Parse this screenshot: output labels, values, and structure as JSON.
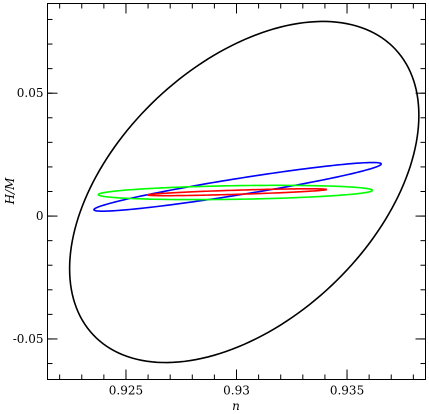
{
  "chart_data": {
    "type": "contour",
    "title": "",
    "xlabel": "n",
    "ylabel": "H/M",
    "xlim": [
      0.92145,
      0.93855
    ],
    "ylim": [
      -0.0665,
      0.0865
    ],
    "xticks": [
      {
        "value": 0.925,
        "label": "0.925"
      },
      {
        "value": 0.93,
        "label": "0.93"
      },
      {
        "value": 0.935,
        "label": "0.935"
      }
    ],
    "yticks": [
      {
        "value": -0.05,
        "label": "-0.05"
      },
      {
        "value": 0,
        "label": "0"
      },
      {
        "value": 0.05,
        "label": "0.05"
      }
    ],
    "x_minor_step": 0.001,
    "y_minor_step": 0.01,
    "grid": false,
    "legend": "none",
    "series": [
      {
        "color": "#000000",
        "center": [
          0.93035,
          0.0098
        ],
        "extent_x": [
          0.92245,
          0.93825
        ],
        "extent_y": [
          -0.0595,
          0.0793
        ],
        "tilt": 0.45
      },
      {
        "color": "#0000ff",
        "center": [
          0.93005,
          0.0119
        ],
        "extent_x": [
          0.92355,
          0.93655
        ],
        "extent_y": [
          0.001,
          0.0208
        ],
        "tilt": 0.94
      },
      {
        "color": "#00ff00",
        "center": [
          0.92995,
          0.0096
        ],
        "extent_x": [
          0.92375,
          0.93615
        ],
        "extent_y": [
          0.0068,
          0.0126
        ],
        "tilt": 0.3
      },
      {
        "color": "#ff0000",
        "center": [
          0.93003,
          0.0097
        ],
        "extent_x": [
          0.92595,
          0.93405
        ],
        "extent_y": [
          0.0083,
          0.0111
        ],
        "tilt": 0.8
      }
    ]
  }
}
